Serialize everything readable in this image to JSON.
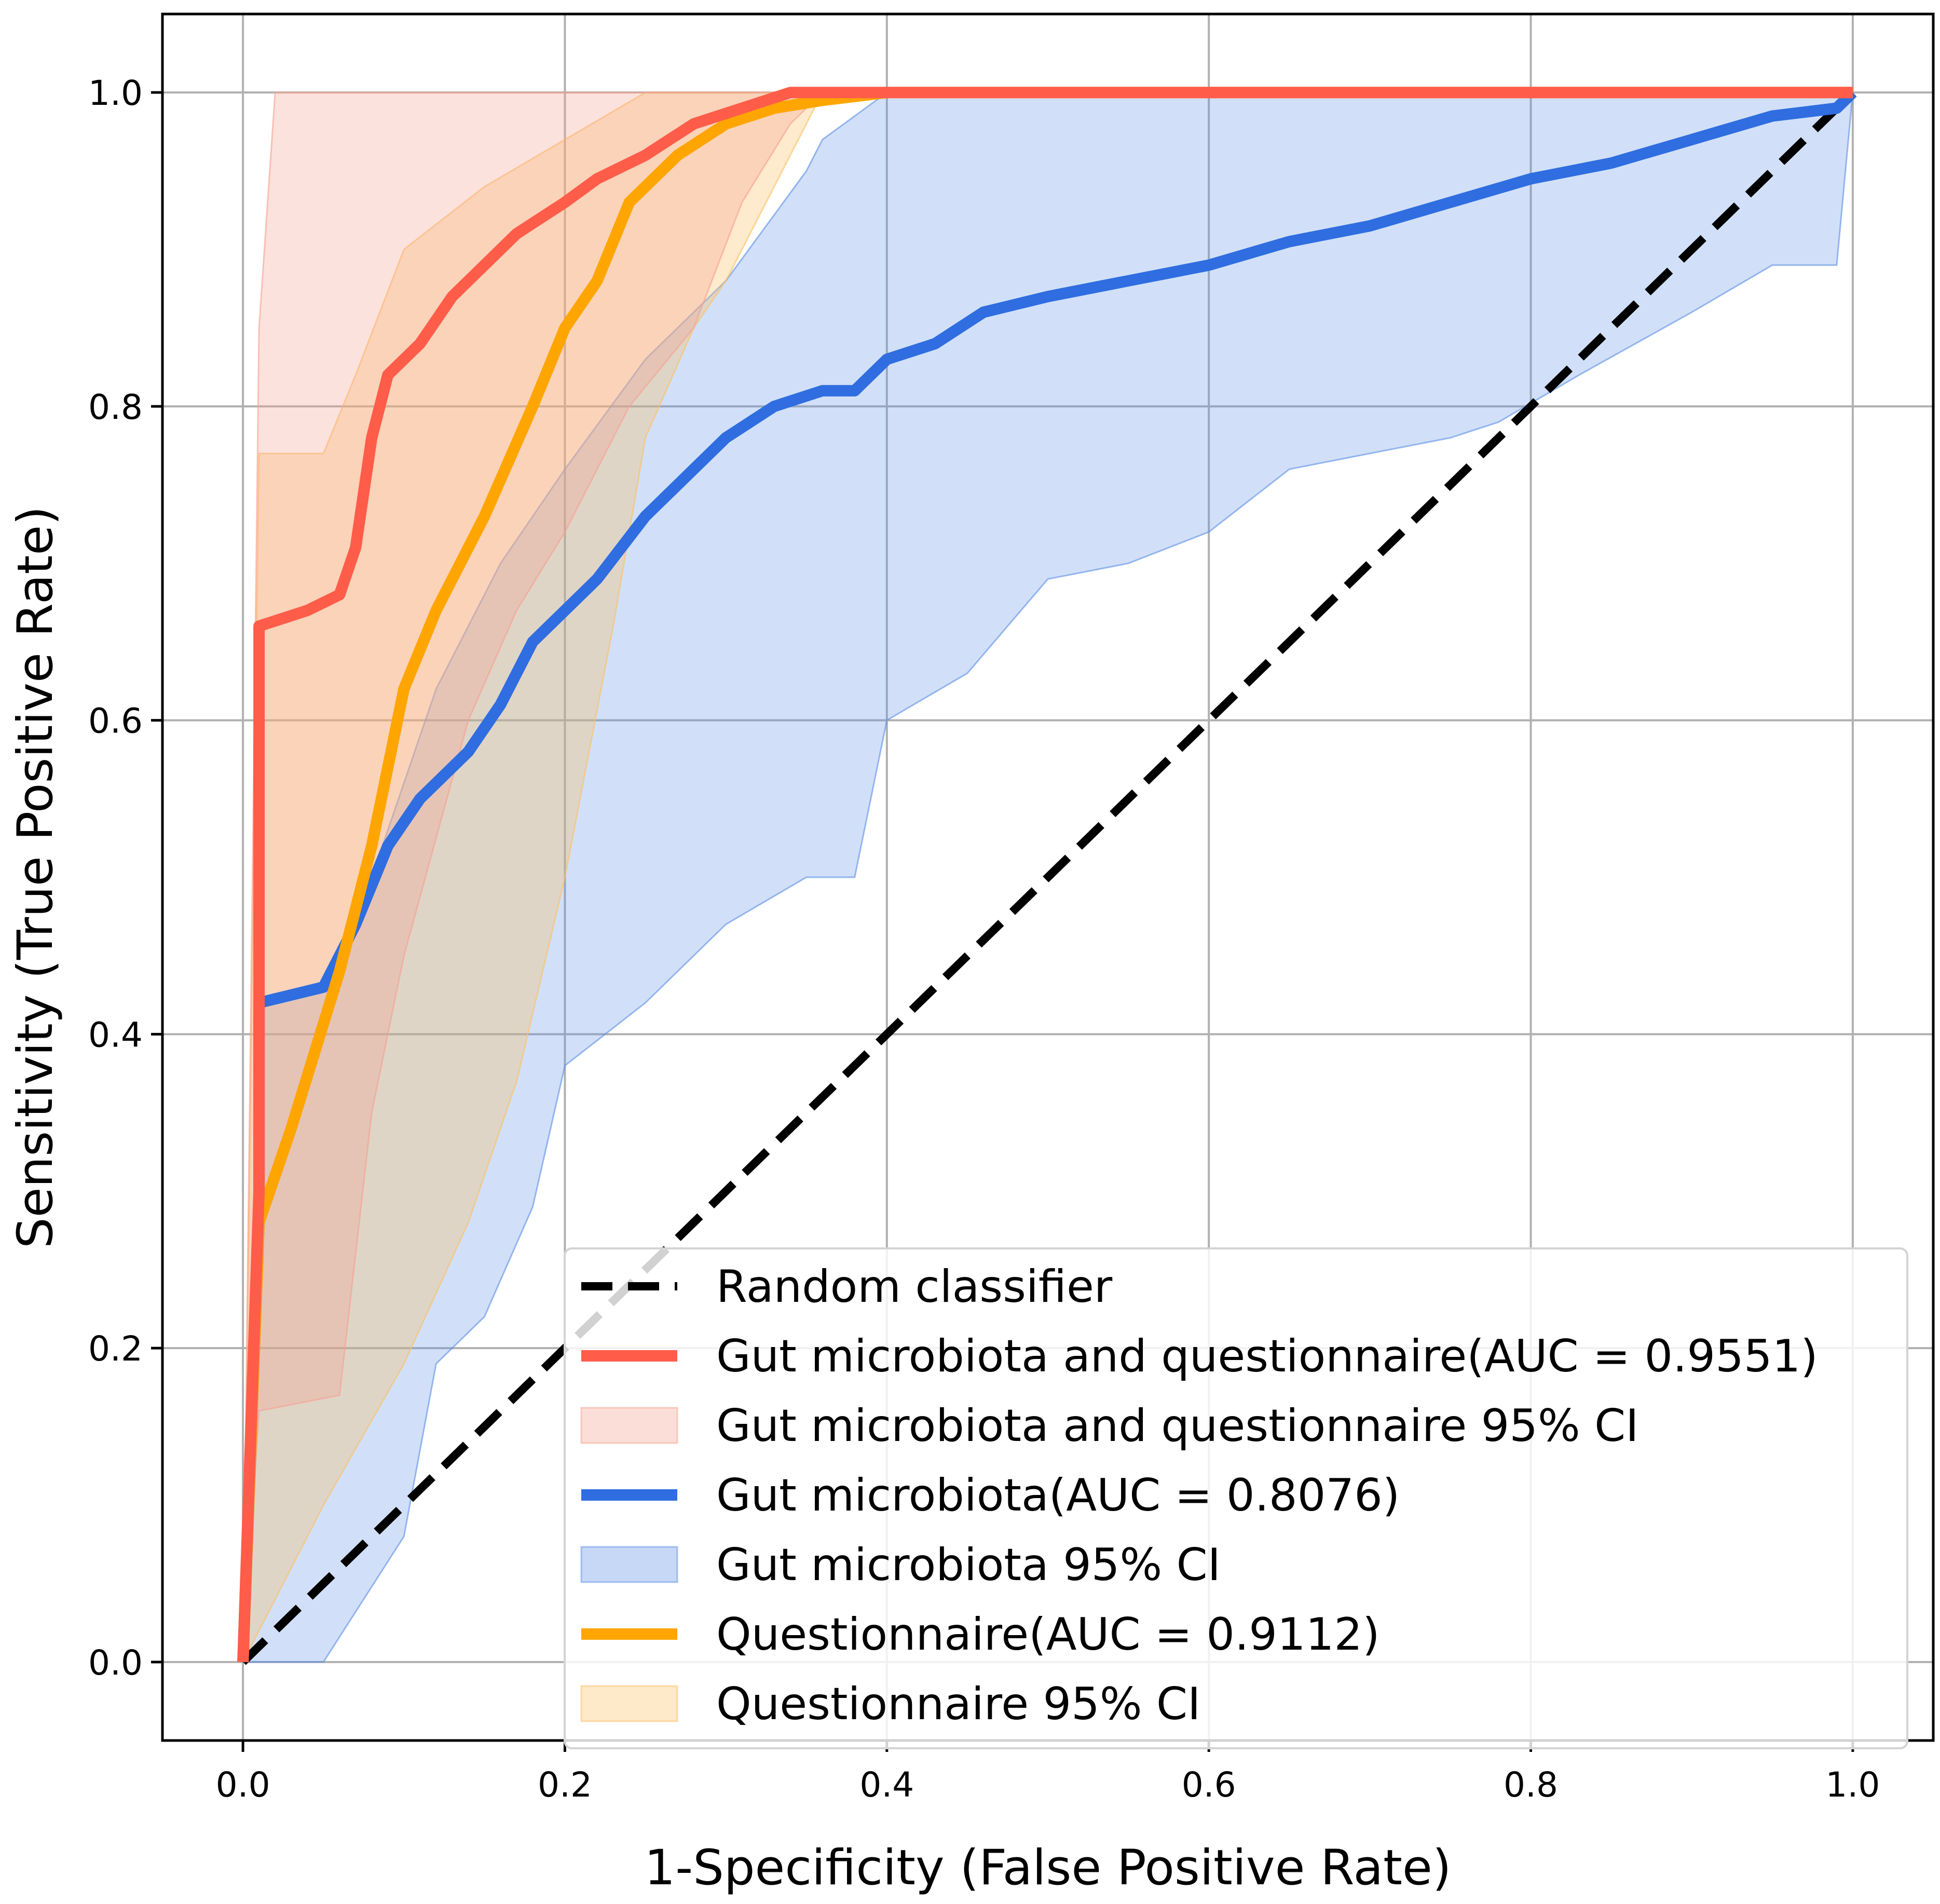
{
  "chart_data": {
    "type": "line",
    "title": "",
    "xlabel": "1-Specificity (False Positive Rate)",
    "ylabel": "Sensitivity (True Positive Rate)",
    "xlim": [
      -0.05,
      1.05
    ],
    "ylim": [
      -0.05,
      1.05
    ],
    "xticks": [
      "0.0",
      "0.2",
      "0.4",
      "0.6",
      "0.8",
      "1.0"
    ],
    "yticks": [
      "0.0",
      "0.2",
      "0.4",
      "0.6",
      "0.8",
      "1.0"
    ],
    "grid": true,
    "legend_position": "lower-right",
    "bands": [
      {
        "name": "Gut microbiota 95% CI",
        "color": "#5b8ee6",
        "opacity": 0.28,
        "upper": [
          [
            0,
            0
          ],
          [
            0.01,
            0.42
          ],
          [
            0.05,
            0.43
          ],
          [
            0.08,
            0.5
          ],
          [
            0.12,
            0.62
          ],
          [
            0.16,
            0.7
          ],
          [
            0.2,
            0.76
          ],
          [
            0.25,
            0.83
          ],
          [
            0.3,
            0.88
          ],
          [
            0.35,
            0.95
          ],
          [
            0.36,
            0.97
          ],
          [
            0.4,
            1.0
          ],
          [
            1.0,
            1.0
          ]
        ],
        "lower": [
          [
            0,
            0
          ],
          [
            0.05,
            0.0
          ],
          [
            0.1,
            0.08
          ],
          [
            0.12,
            0.19
          ],
          [
            0.15,
            0.22
          ],
          [
            0.18,
            0.29
          ],
          [
            0.2,
            0.38
          ],
          [
            0.25,
            0.42
          ],
          [
            0.3,
            0.47
          ],
          [
            0.35,
            0.5
          ],
          [
            0.38,
            0.5
          ],
          [
            0.4,
            0.6
          ],
          [
            0.45,
            0.63
          ],
          [
            0.5,
            0.69
          ],
          [
            0.55,
            0.7
          ],
          [
            0.6,
            0.72
          ],
          [
            0.65,
            0.76
          ],
          [
            0.7,
            0.77
          ],
          [
            0.75,
            0.78
          ],
          [
            0.78,
            0.79
          ],
          [
            0.83,
            0.82
          ],
          [
            0.9,
            0.86
          ],
          [
            0.95,
            0.89
          ],
          [
            0.99,
            0.89
          ],
          [
            1.0,
            1.0
          ]
        ]
      },
      {
        "name": "Questionnaire 95% CI",
        "color": "#fdbf60",
        "opacity": 0.32,
        "upper": [
          [
            0,
            0
          ],
          [
            0.01,
            0.77
          ],
          [
            0.05,
            0.77
          ],
          [
            0.07,
            0.82
          ],
          [
            0.1,
            0.9
          ],
          [
            0.15,
            0.94
          ],
          [
            0.2,
            0.97
          ],
          [
            0.25,
            1.0
          ],
          [
            1.0,
            1.0
          ]
        ],
        "lower": [
          [
            0,
            0
          ],
          [
            0.05,
            0.1
          ],
          [
            0.1,
            0.19
          ],
          [
            0.14,
            0.28
          ],
          [
            0.17,
            0.37
          ],
          [
            0.2,
            0.5
          ],
          [
            0.23,
            0.66
          ],
          [
            0.25,
            0.78
          ],
          [
            0.28,
            0.85
          ],
          [
            0.3,
            0.88
          ],
          [
            0.33,
            0.94
          ],
          [
            0.36,
            1.0
          ],
          [
            1.0,
            1.0
          ]
        ]
      },
      {
        "name": "Gut microbiota and questionnaire 95% CI",
        "color": "#f6a090",
        "opacity": 0.3,
        "upper": [
          [
            0,
            0
          ],
          [
            0.01,
            0.85
          ],
          [
            0.02,
            1.0
          ],
          [
            1.0,
            1.0
          ]
        ],
        "lower": [
          [
            0,
            0
          ],
          [
            0.01,
            0.16
          ],
          [
            0.06,
            0.17
          ],
          [
            0.08,
            0.35
          ],
          [
            0.1,
            0.45
          ],
          [
            0.14,
            0.6
          ],
          [
            0.17,
            0.67
          ],
          [
            0.2,
            0.72
          ],
          [
            0.24,
            0.8
          ],
          [
            0.28,
            0.85
          ],
          [
            0.31,
            0.93
          ],
          [
            0.34,
            0.98
          ],
          [
            0.36,
            1.0
          ],
          [
            1.0,
            1.0
          ]
        ]
      }
    ],
    "series": [
      {
        "name": "Random classifier",
        "color": "#000000",
        "dashed": true,
        "points": [
          [
            0,
            0
          ],
          [
            1,
            1
          ]
        ]
      },
      {
        "name": "Gut microbiota(AUC = 0.8076)",
        "color": "#2f6de0",
        "points": [
          [
            0,
            0
          ],
          [
            0.01,
            0.28
          ],
          [
            0.01,
            0.42
          ],
          [
            0.05,
            0.43
          ],
          [
            0.07,
            0.47
          ],
          [
            0.09,
            0.52
          ],
          [
            0.11,
            0.55
          ],
          [
            0.14,
            0.58
          ],
          [
            0.16,
            0.61
          ],
          [
            0.18,
            0.65
          ],
          [
            0.2,
            0.67
          ],
          [
            0.22,
            0.69
          ],
          [
            0.25,
            0.73
          ],
          [
            0.27,
            0.75
          ],
          [
            0.3,
            0.78
          ],
          [
            0.33,
            0.8
          ],
          [
            0.36,
            0.81
          ],
          [
            0.38,
            0.81
          ],
          [
            0.4,
            0.83
          ],
          [
            0.43,
            0.84
          ],
          [
            0.46,
            0.86
          ],
          [
            0.5,
            0.87
          ],
          [
            0.55,
            0.88
          ],
          [
            0.6,
            0.89
          ],
          [
            0.65,
            0.905
          ],
          [
            0.7,
            0.915
          ],
          [
            0.75,
            0.93
          ],
          [
            0.8,
            0.945
          ],
          [
            0.85,
            0.955
          ],
          [
            0.9,
            0.97
          ],
          [
            0.95,
            0.985
          ],
          [
            0.99,
            0.99
          ],
          [
            1.0,
            1.0
          ]
        ]
      },
      {
        "name": "Questionnaire(AUC = 0.9112)",
        "color": "#ffa500",
        "points": [
          [
            0,
            0
          ],
          [
            0.01,
            0.28
          ],
          [
            0.03,
            0.34
          ],
          [
            0.06,
            0.44
          ],
          [
            0.08,
            0.52
          ],
          [
            0.1,
            0.62
          ],
          [
            0.12,
            0.67
          ],
          [
            0.15,
            0.73
          ],
          [
            0.18,
            0.8
          ],
          [
            0.2,
            0.85
          ],
          [
            0.22,
            0.88
          ],
          [
            0.24,
            0.93
          ],
          [
            0.27,
            0.96
          ],
          [
            0.3,
            0.98
          ],
          [
            0.33,
            0.99
          ],
          [
            0.36,
            0.995
          ],
          [
            0.4,
            1.0
          ],
          [
            1.0,
            1.0
          ]
        ]
      },
      {
        "name": "Gut microbiota and questionnaire(AUC = 0.9551)",
        "color": "#ff5c4a",
        "points": [
          [
            0,
            0
          ],
          [
            0.01,
            0.3
          ],
          [
            0.01,
            0.66
          ],
          [
            0.04,
            0.67
          ],
          [
            0.06,
            0.68
          ],
          [
            0.07,
            0.71
          ],
          [
            0.08,
            0.78
          ],
          [
            0.09,
            0.82
          ],
          [
            0.11,
            0.84
          ],
          [
            0.13,
            0.87
          ],
          [
            0.15,
            0.89
          ],
          [
            0.17,
            0.91
          ],
          [
            0.2,
            0.93
          ],
          [
            0.22,
            0.945
          ],
          [
            0.25,
            0.96
          ],
          [
            0.28,
            0.98
          ],
          [
            0.31,
            0.99
          ],
          [
            0.34,
            1.0
          ],
          [
            1.0,
            1.0
          ]
        ]
      }
    ],
    "legend": [
      {
        "label": "Random classifier",
        "kind": "dash",
        "color": "#000000"
      },
      {
        "label": "Gut microbiota and questionnaire(AUC = 0.9551)",
        "kind": "line",
        "color": "#ff5c4a"
      },
      {
        "label": "Gut microbiota and questionnaire 95% CI",
        "kind": "patch",
        "color": "#f6a090"
      },
      {
        "label": "Gut microbiota(AUC = 0.8076)",
        "kind": "line",
        "color": "#2f6de0"
      },
      {
        "label": "Gut microbiota 95% CI",
        "kind": "patch",
        "color": "#5b8ee6"
      },
      {
        "label": "Questionnaire(AUC = 0.9112)",
        "kind": "line",
        "color": "#ffa500"
      },
      {
        "label": "Questionnaire 95% CI",
        "kind": "patch",
        "color": "#fdbf60"
      }
    ]
  }
}
